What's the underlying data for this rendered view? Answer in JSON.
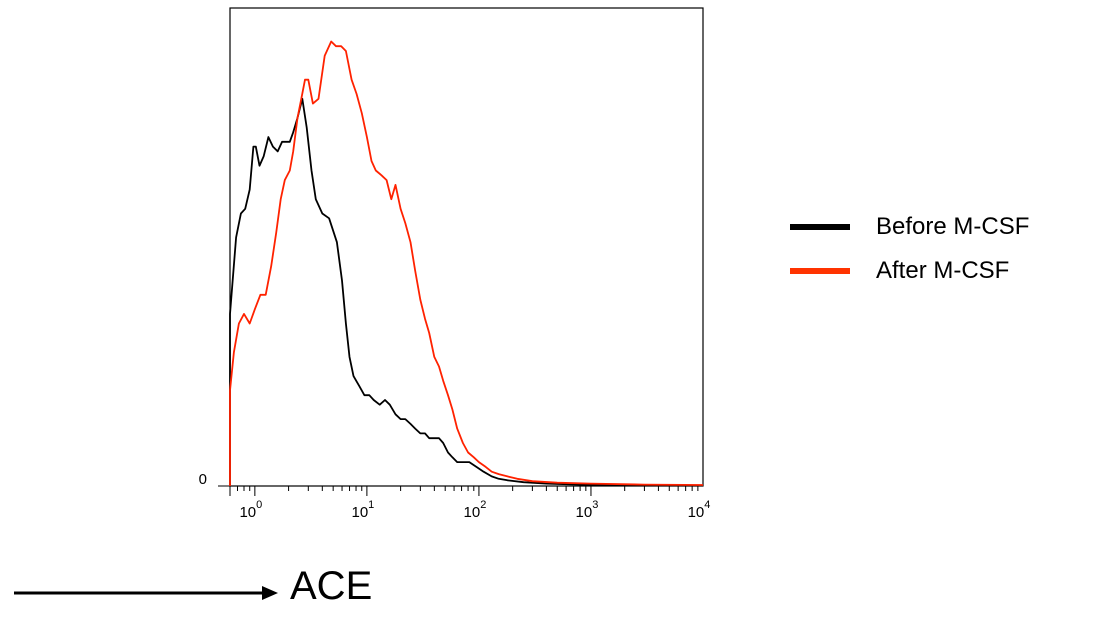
{
  "chart_data": {
    "type": "line",
    "title": "",
    "xlabel": "ACE",
    "ylabel": "",
    "xscale": "log",
    "xlim": [
      0.6,
      10000
    ],
    "ylim": [
      0,
      100
    ],
    "y_tick_labels": [
      "0"
    ],
    "x_ticks": [
      {
        "value": 1,
        "base": "10",
        "exp": "0"
      },
      {
        "value": 10,
        "base": "10",
        "exp": "1"
      },
      {
        "value": 100,
        "base": "10",
        "exp": "2"
      },
      {
        "value": 1000,
        "base": "10",
        "exp": "3"
      },
      {
        "value": 10000,
        "base": "10",
        "exp": "4"
      }
    ],
    "grid": false,
    "legend_position": "right",
    "series": [
      {
        "name": "Before M-CSF",
        "color": "#000000",
        "points": [
          [
            0.6,
            36
          ],
          [
            0.68,
            52
          ],
          [
            0.75,
            57
          ],
          [
            0.82,
            58
          ],
          [
            0.9,
            62
          ],
          [
            0.97,
            71
          ],
          [
            1.02,
            71
          ],
          [
            1.1,
            67
          ],
          [
            1.2,
            69
          ],
          [
            1.32,
            73
          ],
          [
            1.45,
            71
          ],
          [
            1.6,
            70
          ],
          [
            1.75,
            72
          ],
          [
            1.9,
            72
          ],
          [
            2.05,
            72
          ],
          [
            2.2,
            74
          ],
          [
            2.4,
            77
          ],
          [
            2.65,
            81
          ],
          [
            2.9,
            75
          ],
          [
            3.2,
            66
          ],
          [
            3.5,
            60
          ],
          [
            4.0,
            57
          ],
          [
            4.6,
            56
          ],
          [
            5.4,
            51
          ],
          [
            6.0,
            43
          ],
          [
            6.5,
            34
          ],
          [
            7.0,
            27
          ],
          [
            7.6,
            23
          ],
          [
            8.5,
            21
          ],
          [
            9.5,
            19
          ],
          [
            10.5,
            19
          ],
          [
            11.5,
            18
          ],
          [
            13,
            17
          ],
          [
            14.5,
            18
          ],
          [
            16,
            17
          ],
          [
            18,
            15
          ],
          [
            20,
            14
          ],
          [
            22,
            14
          ],
          [
            24.5,
            13
          ],
          [
            27,
            12
          ],
          [
            30,
            11
          ],
          [
            33,
            11
          ],
          [
            36,
            10
          ],
          [
            40,
            10
          ],
          [
            44,
            10
          ],
          [
            48,
            9
          ],
          [
            53,
            7
          ],
          [
            58,
            6
          ],
          [
            64,
            5
          ],
          [
            72,
            5
          ],
          [
            82,
            5
          ],
          [
            95,
            4
          ],
          [
            110,
            3
          ],
          [
            130,
            2
          ],
          [
            150,
            1.5
          ],
          [
            180,
            1.2
          ],
          [
            250,
            0.8
          ],
          [
            400,
            0.5
          ],
          [
            800,
            0.3
          ],
          [
            2000,
            0.2
          ],
          [
            5000,
            0.1
          ],
          [
            10000,
            0.1
          ]
        ]
      },
      {
        "name": "After M-CSF",
        "color": "#ff2200",
        "points": [
          [
            0.6,
            20
          ],
          [
            0.65,
            28
          ],
          [
            0.72,
            34
          ],
          [
            0.8,
            36
          ],
          [
            0.9,
            34
          ],
          [
            1.0,
            37
          ],
          [
            1.12,
            40
          ],
          [
            1.25,
            40
          ],
          [
            1.4,
            46
          ],
          [
            1.55,
            53
          ],
          [
            1.7,
            60
          ],
          [
            1.85,
            64
          ],
          [
            2.05,
            66
          ],
          [
            2.2,
            70
          ],
          [
            2.4,
            77
          ],
          [
            2.6,
            81
          ],
          [
            2.8,
            85
          ],
          [
            3.0,
            85
          ],
          [
            3.3,
            80
          ],
          [
            3.7,
            81
          ],
          [
            4.2,
            90
          ],
          [
            4.8,
            93
          ],
          [
            5.3,
            92
          ],
          [
            5.9,
            92
          ],
          [
            6.5,
            91
          ],
          [
            7.3,
            85
          ],
          [
            8.1,
            82
          ],
          [
            9.0,
            78
          ],
          [
            10,
            73
          ],
          [
            11,
            68
          ],
          [
            12,
            66
          ],
          [
            13.5,
            65
          ],
          [
            15,
            64
          ],
          [
            16.5,
            60
          ],
          [
            18,
            63
          ],
          [
            20,
            58
          ],
          [
            22,
            55
          ],
          [
            24.5,
            51
          ],
          [
            27,
            45
          ],
          [
            30,
            39
          ],
          [
            33,
            35
          ],
          [
            36,
            32
          ],
          [
            40,
            27
          ],
          [
            44,
            25
          ],
          [
            48,
            22
          ],
          [
            53,
            19
          ],
          [
            58,
            16
          ],
          [
            64,
            12
          ],
          [
            72,
            9
          ],
          [
            80,
            7
          ],
          [
            90,
            6
          ],
          [
            100,
            5
          ],
          [
            115,
            4
          ],
          [
            130,
            3
          ],
          [
            150,
            2.5
          ],
          [
            180,
            2
          ],
          [
            220,
            1.5
          ],
          [
            300,
            1
          ],
          [
            500,
            0.7
          ],
          [
            1000,
            0.5
          ],
          [
            3000,
            0.3
          ],
          [
            10000,
            0.2
          ]
        ]
      }
    ]
  }
}
